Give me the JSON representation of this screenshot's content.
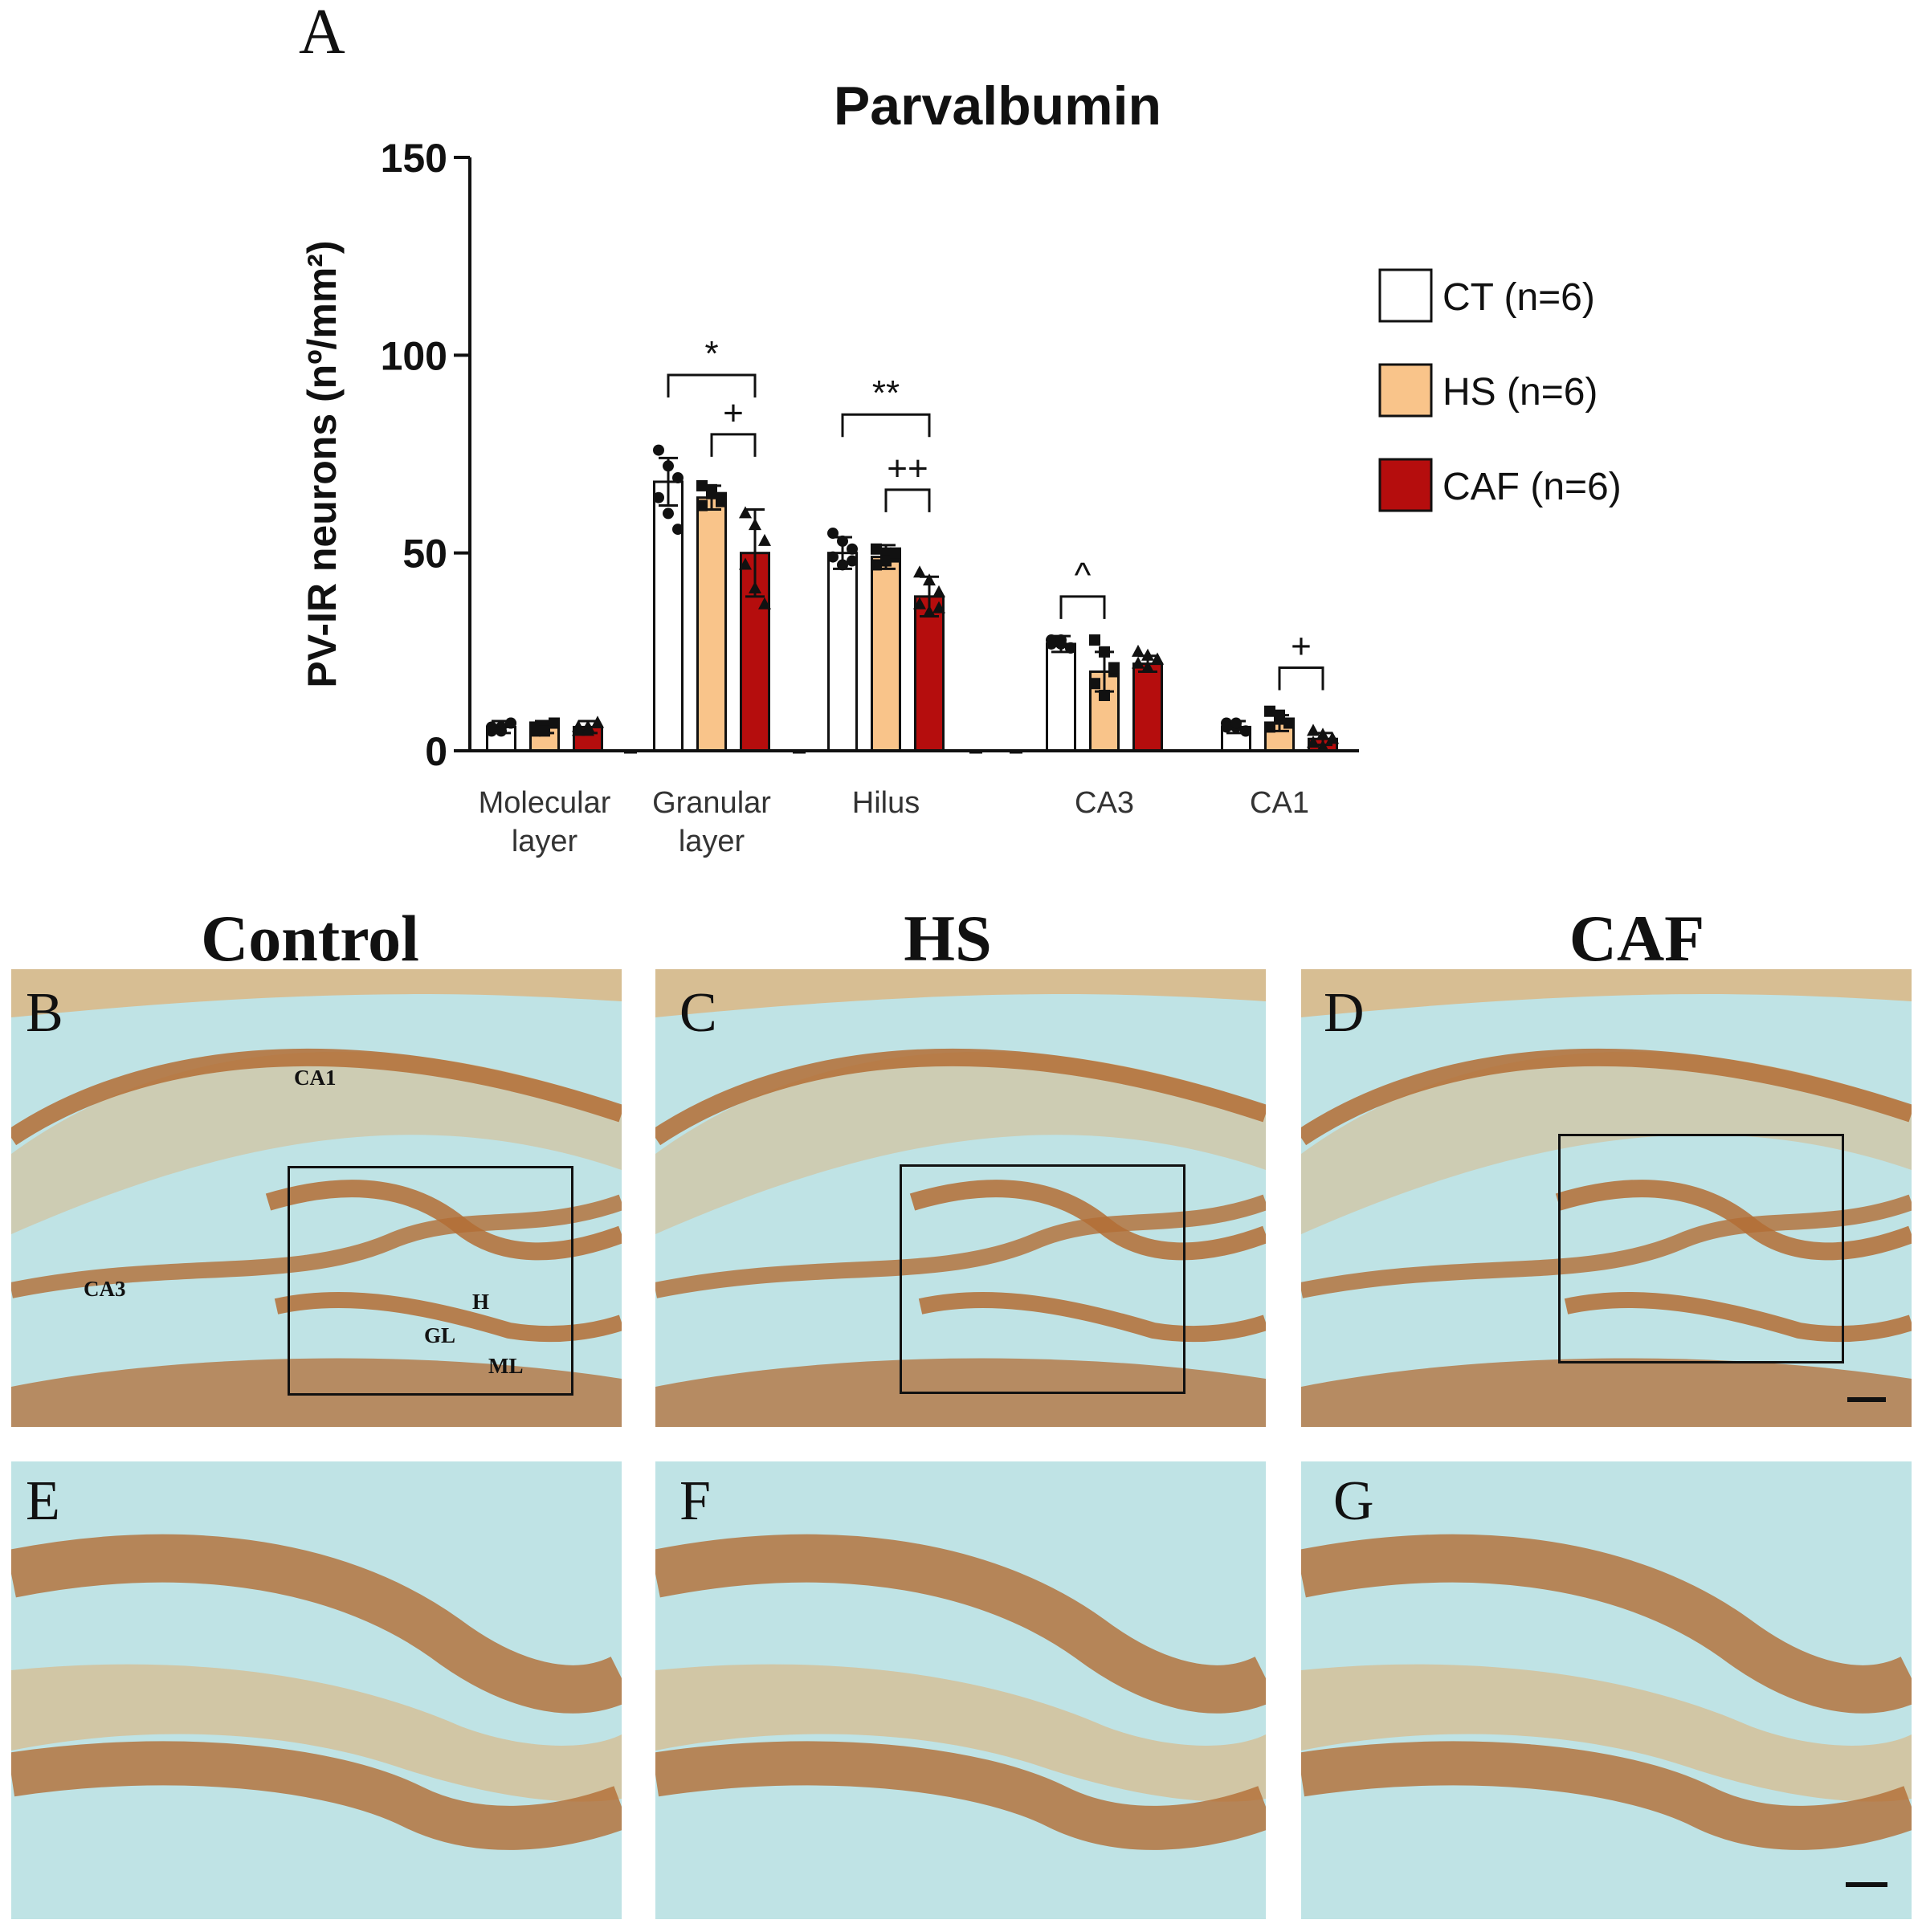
{
  "panel_a_letter": "A",
  "chart_data": {
    "type": "bar",
    "title": "Parvalbumin",
    "ylabel": "PV-IR neurons (nº/mm²)",
    "ylim": [
      0,
      150
    ],
    "yticks": [
      0,
      50,
      100,
      150
    ],
    "categories": [
      "Molecular layer",
      "Granular layer",
      "Hilus",
      "CA3",
      "CA1"
    ],
    "category_lines": [
      [
        "Molecular",
        "layer"
      ],
      [
        "Granular",
        "layer"
      ],
      [
        "Hilus"
      ],
      [
        "CA3"
      ],
      [
        "CA1"
      ]
    ],
    "series": [
      {
        "name": "CT (n=6)",
        "color": "#ffffff",
        "values": [
          6,
          68,
          50,
          27,
          6
        ],
        "errors": [
          1.5,
          6,
          4,
          2,
          1.5
        ]
      },
      {
        "name": "HS (n=6)",
        "color": "#f9c48a",
        "values": [
          6,
          64,
          49,
          20,
          7
        ],
        "errors": [
          1.5,
          3,
          3,
          5,
          2
        ]
      },
      {
        "name": "CAF (n=6)",
        "color": "#b50d0d",
        "values": [
          6,
          50,
          39,
          22,
          3
        ],
        "errors": [
          1.5,
          11,
          5,
          2,
          1.5
        ]
      }
    ],
    "points": [
      [
        [
          5,
          6,
          7,
          6,
          5,
          7
        ],
        [
          5,
          6,
          7,
          6,
          5,
          7
        ],
        [
          5,
          6,
          7,
          6,
          5,
          7
        ]
      ],
      [
        [
          76,
          72,
          69,
          64,
          60,
          56
        ],
        [
          67,
          65,
          64,
          62,
          66,
          63
        ],
        [
          60,
          57,
          53,
          47,
          41,
          37
        ]
      ],
      [
        [
          55,
          53,
          51,
          49,
          47,
          48
        ],
        [
          51,
          50,
          49,
          47,
          48,
          50
        ],
        [
          45,
          43,
          40,
          37,
          35,
          36
        ]
      ],
      [
        [
          28,
          27,
          26,
          27,
          28,
          26
        ],
        [
          28,
          25,
          20,
          17,
          14,
          21
        ],
        [
          25,
          24,
          23,
          22,
          21,
          23
        ]
      ],
      [
        [
          7,
          6,
          5,
          6,
          7,
          5
        ],
        [
          10,
          8,
          7,
          6,
          9,
          7
        ],
        [
          5,
          4,
          3,
          2,
          1,
          3
        ]
      ]
    ],
    "significance": [
      {
        "label": "*",
        "category": 1,
        "from": 0,
        "to": 2,
        "level": 95
      },
      {
        "label": "+",
        "category": 1,
        "from": 1,
        "to": 2,
        "level": 80
      },
      {
        "label": "**",
        "category": 2,
        "from": 0,
        "to": 2,
        "level": 85
      },
      {
        "label": "++",
        "category": 2,
        "from": 1,
        "to": 2,
        "level": 66
      },
      {
        "label": "^",
        "category": 3,
        "from": 0,
        "to": 1,
        "level": 39
      },
      {
        "label": "+",
        "category": 4,
        "from": 1,
        "to": 2,
        "level": 21
      }
    ],
    "legend_position": "right"
  },
  "group_titles": [
    "Control",
    "HS",
    "CAF"
  ],
  "image_panels": [
    {
      "letter": "B",
      "labels": [
        "CA1",
        "CA3",
        "H",
        "GL",
        "ML"
      ]
    },
    {
      "letter": "C"
    },
    {
      "letter": "D"
    },
    {
      "letter": "E"
    },
    {
      "letter": "F"
    },
    {
      "letter": "G"
    }
  ],
  "colors": {
    "tissue_background": "#bfe3e5",
    "stain_band": "#b36d35",
    "stain_light": "#d9b98a",
    "bar_outline": "#111111"
  }
}
